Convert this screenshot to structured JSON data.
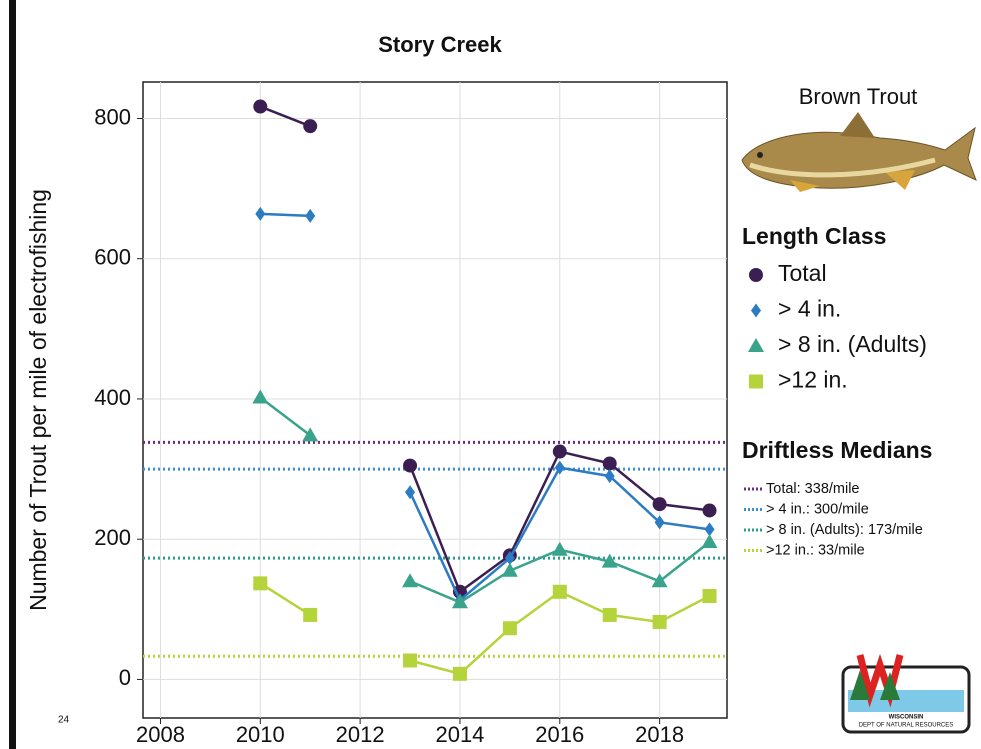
{
  "chart_data": {
    "type": "line",
    "title": "Story Creek",
    "y_label": "Number of Trout per mile of electrofishing",
    "x": [
      2010,
      2011,
      2012,
      2013,
      2014,
      2015,
      2016,
      2017,
      2018,
      2019
    ],
    "series": [
      {
        "name": "Total",
        "color": "#3b1f52",
        "marker": "circle",
        "values": [
          817,
          789,
          null,
          305,
          125,
          177,
          325,
          308,
          250,
          241
        ]
      },
      {
        "name": "> 4 in.",
        "color": "#2b7cc2",
        "marker": "diamond",
        "values": [
          664,
          661,
          null,
          267,
          113,
          173,
          302,
          290,
          224,
          214
        ]
      },
      {
        "name": "> 8 in. (Adults)",
        "color": "#3aa38c",
        "marker": "triangle",
        "values": [
          402,
          348,
          null,
          140,
          110,
          155,
          185,
          168,
          140,
          196
        ]
      },
      {
        "name": ">12 in.",
        "color": "#b5d33a",
        "marker": "square",
        "values": [
          137,
          92,
          null,
          27,
          8,
          73,
          125,
          92,
          82,
          119
        ]
      }
    ],
    "xlim": [
      2007.65,
      2019.35
    ],
    "xticks": [
      2008,
      2010,
      2012,
      2014,
      2016,
      2018
    ],
    "ylim": [
      -55,
      852
    ],
    "yticks": [
      0,
      200,
      400,
      600,
      800
    ],
    "grid": true,
    "legend_title": "Length Class",
    "medians_title": "Driftless Medians",
    "medians": [
      {
        "name": "Total: 338/mile",
        "value": 338,
        "color": "#6b2d80"
      },
      {
        "name": "> 4 in.: 300/mile",
        "value": 300,
        "color": "#3b8fd8"
      },
      {
        "name": "> 8 in. (Adults): 173/mile",
        "value": 173,
        "color": "#2a9c8c"
      },
      {
        "name": ">12 in.: 33/mile",
        "value": 33,
        "color": "#bcd03c"
      }
    ]
  },
  "page_number": "24",
  "species": "Brown Trout",
  "logo": {
    "line1": "WISCONSIN",
    "line2": "DEPT OF NATURAL RESOURCES"
  }
}
